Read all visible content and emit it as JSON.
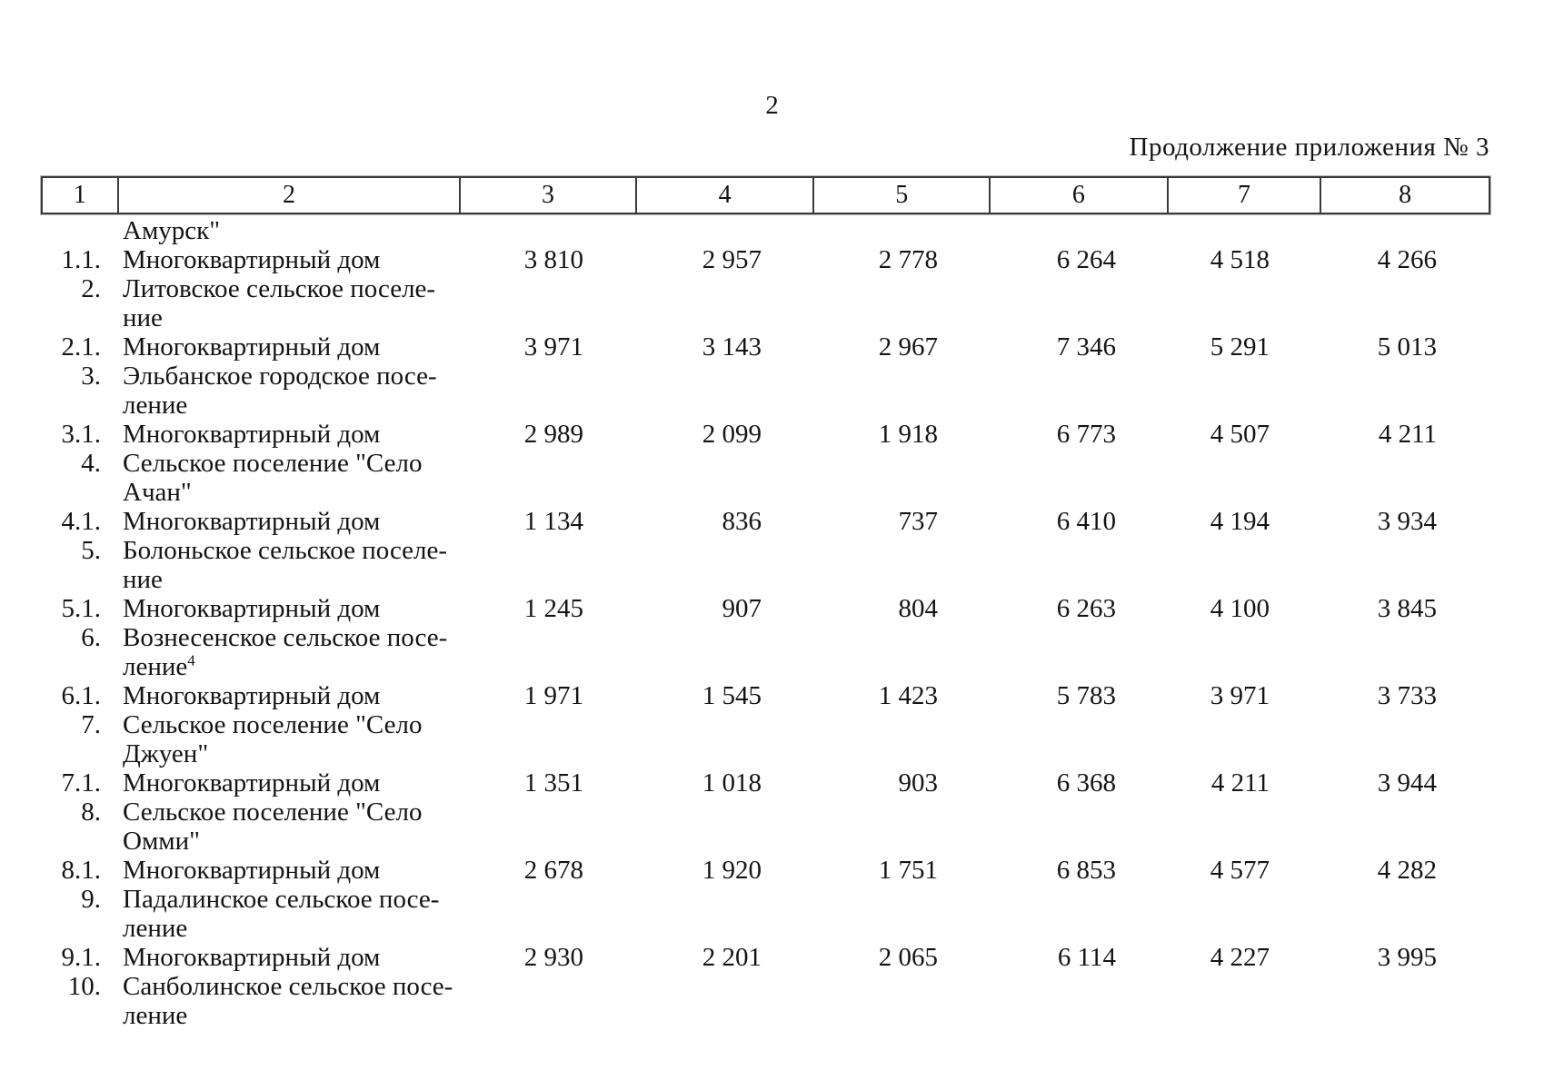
{
  "page": {
    "number": "2",
    "continuation_note": "Продолжение приложения № 3"
  },
  "colors": {
    "background": "#ffffff",
    "text": "#141414",
    "table_border": "#3a3a3a"
  },
  "table": {
    "header_columns": [
      "1",
      "2",
      "3",
      "4",
      "5",
      "6",
      "7",
      "8"
    ],
    "rows": [
      {
        "num": "",
        "name_lines": [
          "Амурск\""
        ],
        "values": []
      },
      {
        "num": "1.1.",
        "name_lines": [
          "Многоквартирный дом"
        ],
        "values": [
          "3 810",
          "2 957",
          "2 778",
          "6 264",
          "4 518",
          "4 266"
        ]
      },
      {
        "num": "2.",
        "name_lines": [
          "Литовское сельское поселе-",
          "ние"
        ],
        "values": []
      },
      {
        "num": "2.1.",
        "name_lines": [
          "Многоквартирный дом"
        ],
        "values": [
          "3 971",
          "3 143",
          "2 967",
          "7 346",
          "5 291",
          "5 013"
        ]
      },
      {
        "num": "3.",
        "name_lines": [
          "Эльбанское городское посе-",
          "ление"
        ],
        "values": []
      },
      {
        "num": "3.1.",
        "name_lines": [
          "Многоквартирный дом"
        ],
        "values": [
          "2 989",
          "2 099",
          "1 918",
          "6 773",
          "4 507",
          "4 211"
        ]
      },
      {
        "num": "4.",
        "name_lines": [
          "Сельское поселение \"Село",
          "Ачан\""
        ],
        "values": []
      },
      {
        "num": "4.1.",
        "name_lines": [
          "Многоквартирный дом"
        ],
        "values": [
          "1 134",
          "836",
          "737",
          "6 410",
          "4 194",
          "3 934"
        ]
      },
      {
        "num": "5.",
        "name_lines": [
          "Болоньское сельское поселе-",
          "ние"
        ],
        "values": []
      },
      {
        "num": "5.1.",
        "name_lines": [
          "Многоквартирный дом"
        ],
        "values": [
          "1 245",
          "907",
          "804",
          "6 263",
          "4 100",
          "3 845"
        ]
      },
      {
        "num": "6.",
        "name_lines": [
          "Вознесенское сельское посе-",
          "ление"
        ],
        "footnote_ref": "4",
        "values": []
      },
      {
        "num": "6.1.",
        "name_lines": [
          "Многоквартирный дом"
        ],
        "values": [
          "1 971",
          "1 545",
          "1 423",
          "5 783",
          "3 971",
          "3 733"
        ]
      },
      {
        "num": "7.",
        "name_lines": [
          "Сельское поселение \"Село",
          "Джуен\""
        ],
        "values": []
      },
      {
        "num": "7.1.",
        "name_lines": [
          "Многоквартирный дом"
        ],
        "values": [
          "1 351",
          "1 018",
          "903",
          "6 368",
          "4 211",
          "3 944"
        ]
      },
      {
        "num": "8.",
        "name_lines": [
          "Сельское поселение \"Село",
          "Омми\""
        ],
        "values": []
      },
      {
        "num": "8.1.",
        "name_lines": [
          "Многоквартирный дом"
        ],
        "values": [
          "2 678",
          "1 920",
          "1 751",
          "6 853",
          "4 577",
          "4 282"
        ]
      },
      {
        "num": "9.",
        "name_lines": [
          "Падалинское сельское посе-",
          "ление"
        ],
        "values": []
      },
      {
        "num": "9.1.",
        "name_lines": [
          "Многоквартирный дом"
        ],
        "values": [
          "2 930",
          "2 201",
          "2 065",
          "6 114",
          "4 227",
          "3 995"
        ]
      },
      {
        "num": "10.",
        "name_lines": [
          "Санболинское сельское посе-",
          "ление"
        ],
        "values": []
      }
    ]
  }
}
